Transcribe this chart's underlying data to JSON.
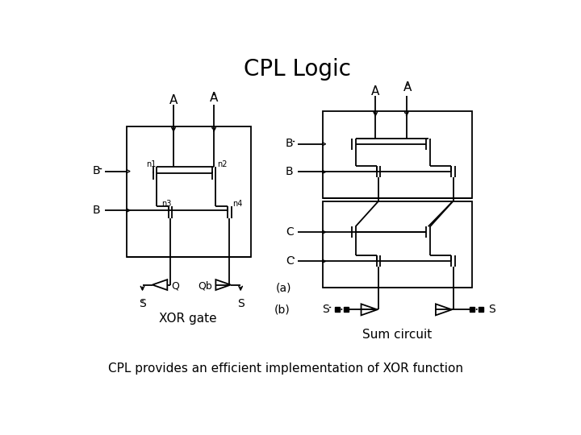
{
  "title": "CPL Logic",
  "subtitle": "CPL provides an efficient implementation of XOR function",
  "label_xor": "XOR gate",
  "label_sum": "Sum circuit",
  "label_a": "(a)",
  "label_b": "(b)",
  "bg_color": "#ffffff",
  "title_fontsize": 20,
  "sub_fontsize": 11,
  "circ_fontsize": 10,
  "small_fontsize": 8
}
